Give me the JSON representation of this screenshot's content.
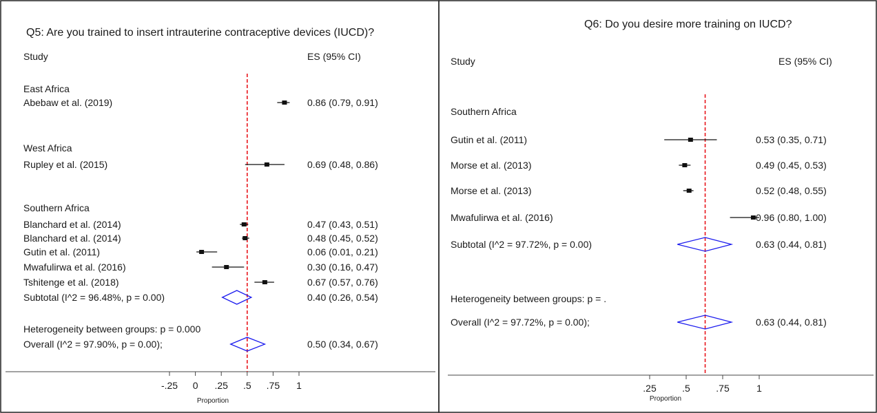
{
  "chart_data": [
    {
      "type": "forest",
      "title": "Q5: Are you trained to insert intrauterine contraceptive devices (IUCD)?",
      "study_header": "Study",
      "es_header": "ES (95% CI)",
      "xlabel": "Proportion",
      "xlim": [
        -0.25,
        1
      ],
      "ticks": [
        {
          "v": -0.25,
          "label": "-.25"
        },
        {
          "v": 0,
          "label": "0"
        },
        {
          "v": 0.25,
          "label": ".25"
        },
        {
          "v": 0.5,
          "label": ".5"
        },
        {
          "v": 0.75,
          "label": ".75"
        },
        {
          "v": 1,
          "label": "1"
        }
      ],
      "overall_line": 0.5,
      "rows": [
        {
          "kind": "group",
          "label": "East Africa"
        },
        {
          "kind": "study",
          "label": "Abebaw et al. (2019)",
          "es": 0.86,
          "lo": 0.79,
          "hi": 0.91,
          "text": "0.86 (0.79, 0.91)"
        },
        {
          "kind": "blank"
        },
        {
          "kind": "group",
          "label": "West Africa"
        },
        {
          "kind": "study",
          "label": "Rupley et al.  (2015)",
          "es": 0.69,
          "lo": 0.48,
          "hi": 0.86,
          "text": "0.69 (0.48, 0.86)"
        },
        {
          "kind": "blank"
        },
        {
          "kind": "group",
          "label": "Southern Africa"
        },
        {
          "kind": "study",
          "label": "Blanchard et al.  (2014)",
          "es": 0.47,
          "lo": 0.43,
          "hi": 0.51,
          "text": "0.47 (0.43, 0.51)"
        },
        {
          "kind": "study",
          "label": "Blanchard et al.  (2014)",
          "es": 0.48,
          "lo": 0.45,
          "hi": 0.52,
          "text": "0.48 (0.45, 0.52)"
        },
        {
          "kind": "study",
          "label": "Gutin et al. (2011)",
          "es": 0.06,
          "lo": 0.01,
          "hi": 0.21,
          "text": "0.06 (0.01, 0.21)"
        },
        {
          "kind": "study",
          "label": "Mwafulirwa et al. (2016)",
          "es": 0.3,
          "lo": 0.16,
          "hi": 0.47,
          "text": "0.30 (0.16, 0.47)"
        },
        {
          "kind": "study",
          "label": "Tshitenge et al. (2018)",
          "es": 0.67,
          "lo": 0.57,
          "hi": 0.76,
          "text": "0.67 (0.57, 0.76)"
        },
        {
          "kind": "subtotal",
          "label": "Subtotal  (I^2 = 96.48%, p = 0.00)",
          "es": 0.4,
          "lo": 0.26,
          "hi": 0.54,
          "text": "0.40 (0.26, 0.54)"
        },
        {
          "kind": "blank"
        },
        {
          "kind": "group",
          "label": "Heterogeneity between groups: p = 0.000"
        },
        {
          "kind": "overall",
          "label": "Overall  (I^2 = 97.90%, p = 0.00);",
          "es": 0.5,
          "lo": 0.34,
          "hi": 0.67,
          "text": "0.50 (0.34, 0.67)"
        }
      ]
    },
    {
      "type": "forest",
      "title": "Q6: Do you desire more training on IUCD?",
      "study_header": "Study",
      "es_header": "ES (95% CI)",
      "xlabel": "Proportion",
      "xlim": [
        0.25,
        1
      ],
      "ticks": [
        {
          "v": 0.25,
          "label": ".25"
        },
        {
          "v": 0.5,
          "label": ".5"
        },
        {
          "v": 0.75,
          "label": ".75"
        },
        {
          "v": 1,
          "label": "1"
        }
      ],
      "overall_line": 0.63,
      "rows": [
        {
          "kind": "group",
          "label": "Southern Africa"
        },
        {
          "kind": "study",
          "label": "Gutin et al. (2011)",
          "es": 0.53,
          "lo": 0.35,
          "hi": 0.71,
          "text": "0.53 (0.35, 0.71)"
        },
        {
          "kind": "study",
          "label": "Morse et al.  (2013)",
          "es": 0.49,
          "lo": 0.45,
          "hi": 0.53,
          "text": "0.49 (0.45, 0.53)"
        },
        {
          "kind": "study",
          "label": "Morse et al.  (2013)",
          "es": 0.52,
          "lo": 0.48,
          "hi": 0.55,
          "text": "0.52 (0.48, 0.55)"
        },
        {
          "kind": "study",
          "label": "Mwafulirwa et al. (2016)",
          "es": 0.96,
          "lo": 0.8,
          "hi": 1.0,
          "text": "0.96 (0.80, 1.00)"
        },
        {
          "kind": "subtotal",
          "label": "Subtotal  (I^2 = 97.72%, p = 0.00)",
          "es": 0.63,
          "lo": 0.44,
          "hi": 0.81,
          "text": "0.63 (0.44, 0.81)"
        },
        {
          "kind": "blank"
        },
        {
          "kind": "group",
          "label": "Heterogeneity between groups: p = ."
        },
        {
          "kind": "overall",
          "label": "Overall  (I^2 = 97.72%, p = 0.00);",
          "es": 0.63,
          "lo": 0.44,
          "hi": 0.81,
          "text": "0.63 (0.44, 0.81)"
        }
      ]
    }
  ]
}
